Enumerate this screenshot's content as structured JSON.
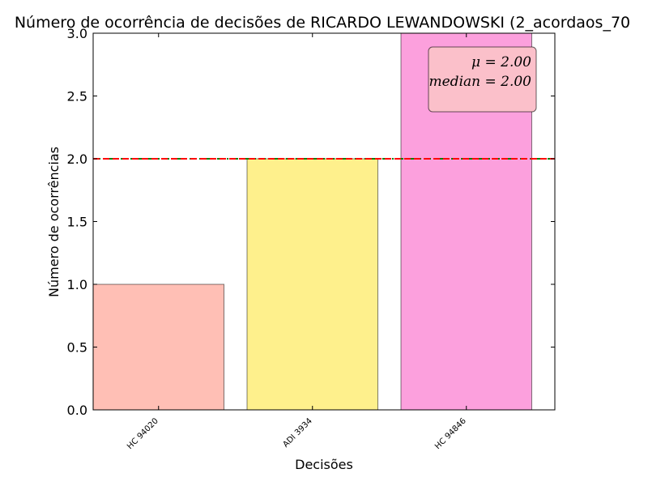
{
  "chart_data": {
    "type": "bar",
    "title": "Número de ocorrência de decisões de RICARDO LEWANDOWSKI (2_acordaos_70",
    "xlabel": "Decisões",
    "ylabel": "Número de ocorrências",
    "categories": [
      "HC 94020",
      "ADI 3934",
      "HC 94846"
    ],
    "values": [
      1,
      2,
      3
    ],
    "bar_colors": [
      "#ffbfb5",
      "#fef08c",
      "#fca0dd"
    ],
    "ylim": [
      0,
      3.0
    ],
    "yticks": [
      "0.0",
      "0.5",
      "1.0",
      "1.5",
      "2.0",
      "2.5",
      "3.0"
    ],
    "mean": 2.0,
    "median": 2.0,
    "mean_line_color": "#ff0000",
    "median_line_color": "#008000",
    "stats_box": {
      "mean_text": "μ = 2.00",
      "median_text": "median = 2.00",
      "background": "#fbc0ca",
      "position": "top-right"
    },
    "grid": false
  }
}
